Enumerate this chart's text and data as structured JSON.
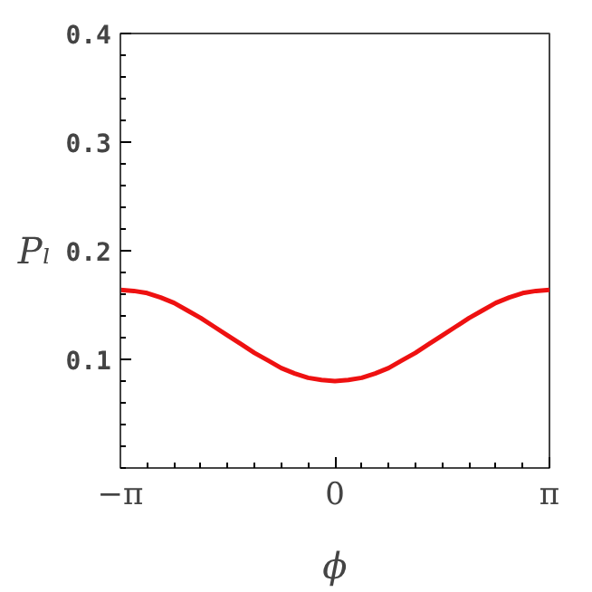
{
  "chart_data": {
    "type": "line",
    "xlabel": "ϕ",
    "ylabel": "Pₗ",
    "x": [
      -3.1416,
      -2.9452,
      -2.7489,
      -2.5525,
      -2.3562,
      -2.1598,
      -1.9635,
      -1.7671,
      -1.5708,
      -1.3744,
      -1.1781,
      -0.9817,
      -0.7854,
      -0.589,
      -0.3927,
      -0.1963,
      0,
      0.1963,
      0.3927,
      0.589,
      0.7854,
      0.9817,
      1.1781,
      1.3744,
      1.5708,
      1.7671,
      1.9635,
      2.1598,
      2.3562,
      2.5525,
      2.7489,
      2.9452,
      3.1416
    ],
    "series": [
      {
        "color": "#ee1111",
        "values": [
          0.164,
          0.163,
          0.161,
          0.157,
          0.152,
          0.145,
          0.138,
          0.13,
          0.122,
          0.114,
          0.106,
          0.099,
          0.092,
          0.087,
          0.083,
          0.081,
          0.08,
          0.081,
          0.083,
          0.087,
          0.092,
          0.099,
          0.106,
          0.114,
          0.122,
          0.13,
          0.138,
          0.145,
          0.152,
          0.157,
          0.161,
          0.163,
          0.164
        ]
      }
    ],
    "xlim": [
      -3.1416,
      3.1416
    ],
    "ylim": [
      0,
      0.4
    ],
    "xticks": [
      {
        "value": -3.1416,
        "label": "−π"
      },
      0,
      {
        "value": 3.1416,
        "label": "π"
      }
    ],
    "yticks": [
      0.1,
      0.2,
      0.3,
      0.4
    ],
    "line_style": "solid"
  }
}
